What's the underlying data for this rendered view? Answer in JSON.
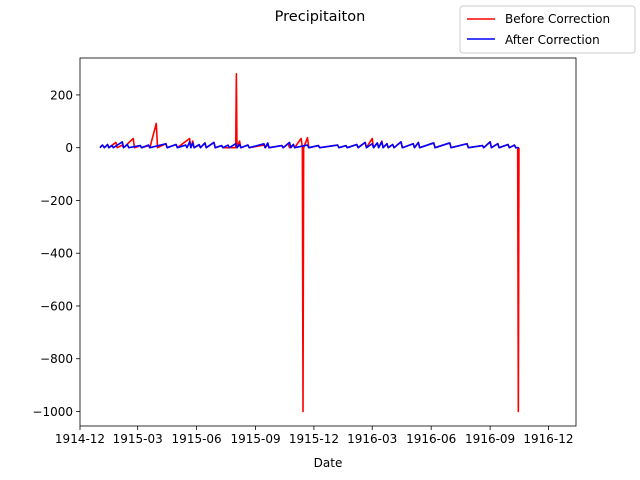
{
  "chart_data": {
    "type": "line",
    "title": "Precipitaiton",
    "xlabel": "Date",
    "ylabel": "",
    "x_axis_type": "date",
    "xlim": [
      "1914-12-01",
      "1917-01-13"
    ],
    "ylim": [
      -1055,
      340
    ],
    "x_ticks": [
      "1914-12",
      "1915-03",
      "1915-06",
      "1915-09",
      "1915-12",
      "1916-03",
      "1916-06",
      "1916-09",
      "1916-12"
    ],
    "x_tick_dates": [
      "1914-12-01",
      "1915-03-01",
      "1915-06-01",
      "1915-09-01",
      "1915-12-01",
      "1916-03-01",
      "1916-06-01",
      "1916-09-01",
      "1916-12-01"
    ],
    "y_ticks": [
      -1000,
      -800,
      -600,
      -400,
      -200,
      0,
      200
    ],
    "y_tick_labels": [
      "−1000",
      "−800",
      "−600",
      "−400",
      "−200",
      "0",
      "200"
    ],
    "legend_position": "top-right",
    "grid": false,
    "series": [
      {
        "name": "Before Correction",
        "color": "#ff0000",
        "points": [
          [
            "1915-01-01",
            0
          ],
          [
            "1915-01-05",
            10
          ],
          [
            "1915-01-08",
            0
          ],
          [
            "1915-01-13",
            12
          ],
          [
            "1915-01-15",
            0
          ],
          [
            "1915-01-26",
            20
          ],
          [
            "1915-01-28",
            0
          ],
          [
            "1915-02-05",
            10
          ],
          [
            "1915-02-07",
            0
          ],
          [
            "1915-02-22",
            35
          ],
          [
            "1915-02-24",
            0
          ],
          [
            "1915-03-05",
            8
          ],
          [
            "1915-03-07",
            0
          ],
          [
            "1915-03-18",
            8
          ],
          [
            "1915-03-20",
            0
          ],
          [
            "1915-03-30",
            92
          ],
          [
            "1915-04-01",
            0
          ],
          [
            "1915-04-14",
            15
          ],
          [
            "1915-04-16",
            0
          ],
          [
            "1915-04-30",
            12
          ],
          [
            "1915-05-02",
            0
          ],
          [
            "1915-05-21",
            35
          ],
          [
            "1915-05-23",
            0
          ],
          [
            "1915-05-26",
            25
          ],
          [
            "1915-05-28",
            0
          ],
          [
            "1915-06-05",
            10
          ],
          [
            "1915-06-07",
            0
          ],
          [
            "1915-06-14",
            18
          ],
          [
            "1915-06-16",
            0
          ],
          [
            "1915-06-28",
            20
          ],
          [
            "1915-06-30",
            0
          ],
          [
            "1915-07-10",
            8
          ],
          [
            "1915-07-12",
            0
          ],
          [
            "1915-08-01",
            0
          ],
          [
            "1915-08-02",
            280
          ],
          [
            "1915-08-03",
            0
          ],
          [
            "1915-08-07",
            25
          ],
          [
            "1915-08-09",
            0
          ],
          [
            "1915-08-20",
            10
          ],
          [
            "1915-08-22",
            0
          ],
          [
            "1915-09-14",
            10
          ],
          [
            "1915-09-16",
            0
          ],
          [
            "1915-09-20",
            12
          ],
          [
            "1915-09-22",
            0
          ],
          [
            "1915-10-12",
            8
          ],
          [
            "1915-10-14",
            0
          ],
          [
            "1915-10-22",
            15
          ],
          [
            "1915-10-24",
            0
          ],
          [
            "1915-10-30",
            12
          ],
          [
            "1915-11-01",
            0
          ],
          [
            "1915-11-11",
            35
          ],
          [
            "1915-11-13",
            0
          ],
          [
            "1915-11-14",
            -1000
          ],
          [
            "1915-11-15",
            0
          ],
          [
            "1915-11-21",
            38
          ],
          [
            "1915-11-23",
            0
          ],
          [
            "1915-12-08",
            8
          ],
          [
            "1915-12-10",
            0
          ],
          [
            "1916-01-07",
            10
          ],
          [
            "1916-01-09",
            0
          ],
          [
            "1916-01-20",
            8
          ],
          [
            "1916-01-22",
            0
          ],
          [
            "1916-02-06",
            12
          ],
          [
            "1916-02-08",
            0
          ],
          [
            "1916-02-19",
            20
          ],
          [
            "1916-02-21",
            0
          ],
          [
            "1916-03-01",
            35
          ],
          [
            "1916-03-03",
            0
          ],
          [
            "1916-03-09",
            18
          ],
          [
            "1916-03-11",
            0
          ],
          [
            "1916-03-16",
            25
          ],
          [
            "1916-03-18",
            0
          ],
          [
            "1916-03-24",
            15
          ],
          [
            "1916-03-26",
            0
          ],
          [
            "1916-04-02",
            12
          ],
          [
            "1916-04-04",
            0
          ],
          [
            "1916-04-15",
            22
          ],
          [
            "1916-04-17",
            0
          ],
          [
            "1916-05-04",
            15
          ],
          [
            "1916-05-06",
            0
          ],
          [
            "1916-05-12",
            20
          ],
          [
            "1916-05-14",
            0
          ],
          [
            "1916-06-05",
            18
          ],
          [
            "1916-06-07",
            0
          ],
          [
            "1916-06-30",
            18
          ],
          [
            "1916-07-02",
            0
          ],
          [
            "1916-07-27",
            15
          ],
          [
            "1916-07-29",
            0
          ],
          [
            "1916-08-20",
            8
          ],
          [
            "1916-08-22",
            0
          ],
          [
            "1916-09-01",
            22
          ],
          [
            "1916-09-03",
            0
          ],
          [
            "1916-09-13",
            15
          ],
          [
            "1916-09-15",
            0
          ],
          [
            "1916-09-29",
            12
          ],
          [
            "1916-10-01",
            0
          ],
          [
            "1916-10-09",
            10
          ],
          [
            "1916-10-11",
            0
          ],
          [
            "1916-10-14",
            0
          ],
          [
            "1916-10-15",
            -1000
          ],
          [
            "1916-10-16",
            0
          ]
        ]
      },
      {
        "name": "After Correction",
        "color": "#0000ff",
        "points": [
          [
            "1915-01-01",
            0
          ],
          [
            "1915-01-05",
            10
          ],
          [
            "1915-01-08",
            0
          ],
          [
            "1915-01-13",
            12
          ],
          [
            "1915-01-15",
            0
          ],
          [
            "1915-01-20",
            8
          ],
          [
            "1915-01-22",
            0
          ],
          [
            "1915-02-05",
            22
          ],
          [
            "1915-02-07",
            0
          ],
          [
            "1915-02-13",
            12
          ],
          [
            "1915-02-15",
            0
          ],
          [
            "1915-03-05",
            8
          ],
          [
            "1915-03-07",
            0
          ],
          [
            "1915-03-18",
            10
          ],
          [
            "1915-03-20",
            0
          ],
          [
            "1915-04-14",
            15
          ],
          [
            "1915-04-16",
            0
          ],
          [
            "1915-04-30",
            12
          ],
          [
            "1915-05-02",
            0
          ],
          [
            "1915-05-15",
            10
          ],
          [
            "1915-05-17",
            0
          ],
          [
            "1915-05-21",
            22
          ],
          [
            "1915-05-23",
            0
          ],
          [
            "1915-05-26",
            18
          ],
          [
            "1915-05-28",
            0
          ],
          [
            "1915-06-05",
            12
          ],
          [
            "1915-06-07",
            0
          ],
          [
            "1915-06-14",
            18
          ],
          [
            "1915-06-16",
            0
          ],
          [
            "1915-06-28",
            20
          ],
          [
            "1915-06-30",
            0
          ],
          [
            "1915-07-10",
            8
          ],
          [
            "1915-07-12",
            0
          ],
          [
            "1915-07-20",
            10
          ],
          [
            "1915-07-22",
            0
          ],
          [
            "1915-08-01",
            15
          ],
          [
            "1915-08-03",
            0
          ],
          [
            "1915-08-07",
            12
          ],
          [
            "1915-08-09",
            0
          ],
          [
            "1915-08-20",
            10
          ],
          [
            "1915-08-22",
            0
          ],
          [
            "1915-09-14",
            15
          ],
          [
            "1915-09-16",
            0
          ],
          [
            "1915-09-20",
            18
          ],
          [
            "1915-09-22",
            0
          ],
          [
            "1915-10-12",
            8
          ],
          [
            "1915-10-14",
            0
          ],
          [
            "1915-10-24",
            20
          ],
          [
            "1915-10-26",
            0
          ],
          [
            "1915-10-30",
            12
          ],
          [
            "1915-11-01",
            0
          ],
          [
            "1915-11-21",
            10
          ],
          [
            "1915-11-23",
            0
          ],
          [
            "1915-12-08",
            8
          ],
          [
            "1915-12-10",
            0
          ],
          [
            "1916-01-07",
            10
          ],
          [
            "1916-01-09",
            0
          ],
          [
            "1916-01-20",
            8
          ],
          [
            "1916-01-22",
            0
          ],
          [
            "1916-02-06",
            12
          ],
          [
            "1916-02-08",
            0
          ],
          [
            "1916-02-19",
            20
          ],
          [
            "1916-02-21",
            0
          ],
          [
            "1916-03-01",
            15
          ],
          [
            "1916-03-03",
            0
          ],
          [
            "1916-03-09",
            18
          ],
          [
            "1916-03-11",
            0
          ],
          [
            "1916-03-16",
            22
          ],
          [
            "1916-03-18",
            0
          ],
          [
            "1916-03-24",
            15
          ],
          [
            "1916-03-26",
            0
          ],
          [
            "1916-04-02",
            12
          ],
          [
            "1916-04-04",
            0
          ],
          [
            "1916-04-15",
            22
          ],
          [
            "1916-04-17",
            0
          ],
          [
            "1916-05-04",
            15
          ],
          [
            "1916-05-06",
            0
          ],
          [
            "1916-05-12",
            20
          ],
          [
            "1916-05-14",
            0
          ],
          [
            "1916-06-05",
            18
          ],
          [
            "1916-06-07",
            0
          ],
          [
            "1916-06-30",
            18
          ],
          [
            "1916-07-02",
            0
          ],
          [
            "1916-07-27",
            15
          ],
          [
            "1916-07-29",
            0
          ],
          [
            "1916-08-20",
            8
          ],
          [
            "1916-08-22",
            0
          ],
          [
            "1916-09-01",
            22
          ],
          [
            "1916-09-03",
            0
          ],
          [
            "1916-09-13",
            15
          ],
          [
            "1916-09-15",
            0
          ],
          [
            "1916-09-29",
            12
          ],
          [
            "1916-10-01",
            0
          ],
          [
            "1916-10-09",
            10
          ],
          [
            "1916-10-11",
            0
          ],
          [
            "1916-10-16",
            0
          ]
        ]
      }
    ]
  }
}
